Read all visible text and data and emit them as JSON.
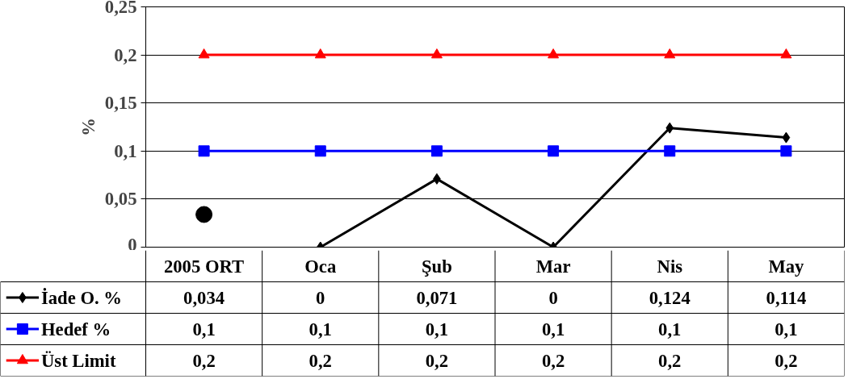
{
  "chart_data": {
    "type": "line",
    "ylabel": "%",
    "categories": [
      "2005 ORT",
      "Oca",
      "Şub",
      "Mar",
      "Nis",
      "May"
    ],
    "series": [
      {
        "name": "İade O. %",
        "color": "#000000",
        "marker": "diamond",
        "values": [
          null,
          0,
          0.071,
          0,
          0.124,
          0.114
        ],
        "value_labels": [
          "0,034",
          "0",
          "0,071",
          "0",
          "0,124",
          "0,114"
        ]
      },
      {
        "type": "scatter",
        "color": "#000000",
        "marker": "circle",
        "values": [
          0.034,
          null,
          null,
          null,
          null,
          null
        ],
        "value_labels": [
          null,
          null,
          null,
          null,
          null,
          null
        ]
      },
      {
        "name": "Hedef %",
        "color": "#0000ff",
        "marker": "square",
        "values": [
          0.1,
          0.1,
          0.1,
          0.1,
          0.1,
          0.1
        ],
        "value_labels": [
          "0,1",
          "0,1",
          "0,1",
          "0,1",
          "0,1",
          "0,1"
        ]
      },
      {
        "name": "Üst Limit",
        "color": "#ff0000",
        "marker": "triangle",
        "values": [
          0.2,
          0.2,
          0.2,
          0.2,
          0.2,
          0.2
        ],
        "value_labels": [
          "0,2",
          "0,2",
          "0,2",
          "0,2",
          "0,2",
          "0,2"
        ]
      }
    ],
    "ylim": [
      0,
      0.25
    ],
    "yticks": [
      0,
      {
        "value": 0.05,
        "label": "0,05"
      },
      {
        "value": 0.1,
        "label": "0,1"
      },
      {
        "value": 0.15,
        "label": "0,15"
      },
      {
        "value": 0.2,
        "label": "0,2"
      },
      {
        "value": 0.25,
        "label": "0,25"
      }
    ],
    "grid": "y",
    "legend": "bottom",
    "data_labels": true
  }
}
